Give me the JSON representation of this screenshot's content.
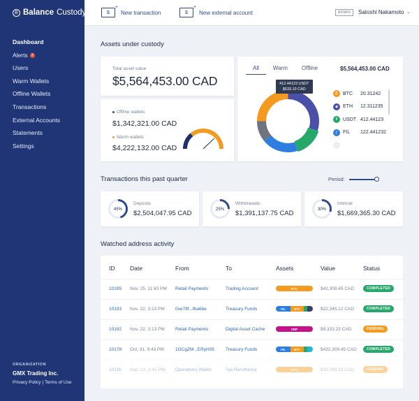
{
  "brand": {
    "bold": "Balance",
    "light": "Custody",
    "mark": "B"
  },
  "nav": [
    {
      "label": "Dashboard",
      "active": true
    },
    {
      "label": "Alerts",
      "badge": "3"
    },
    {
      "label": "Users"
    },
    {
      "label": "Warm Wallets"
    },
    {
      "label": "Offline Wallets"
    },
    {
      "label": "Transactions"
    },
    {
      "label": "External Accounts"
    },
    {
      "label": "Statements"
    },
    {
      "label": "Settings"
    }
  ],
  "org": {
    "label": "ORGANIZATION",
    "name": "GMX Trading Inc.",
    "privacy": "Privacy Policy",
    "sep": "|",
    "terms": "Terms of Use"
  },
  "topbar": {
    "new_transaction": "New transaction",
    "new_external": "New external account",
    "admin_tag": "ADMIN",
    "user": "Satoshi Nakamoto"
  },
  "assets": {
    "title": "Assets under custody",
    "total_label": "Total asset value",
    "total_value": "$5,564,453.00 CAD",
    "offline_label": "Offline wallets",
    "offline_value": "$1,342,321.00 CAD",
    "warm_label": "Warm wallets",
    "warm_value": "$4,222,132.00 CAD",
    "gauge_fraction": 0.76,
    "tabs": [
      "All",
      "Warm",
      "Offline"
    ],
    "active_tab": "All",
    "donut_total": "$5,564,453.00 CAD",
    "tooltip_line1": "412.44123 USDT",
    "tooltip_line2": "$533.10 CAD",
    "coins": [
      {
        "symbol": "BTC",
        "amount": "20.31242",
        "color": "#f39a1f",
        "icon": "bitcoin-icon",
        "glyph": "₿"
      },
      {
        "symbol": "ETH",
        "amount": "12.311235",
        "color": "#4a4fa8",
        "icon": "ethereum-icon",
        "glyph": "◆"
      },
      {
        "symbol": "USDT",
        "amount": "412.44123",
        "color": "#27a86b",
        "icon": "tether-icon",
        "glyph": "₮"
      },
      {
        "symbol": "FIL",
        "amount": "122.441232",
        "color": "#2e7de0",
        "icon": "filecoin-icon",
        "glyph": "ƒ"
      },
      {
        "symbol": "",
        "amount": "",
        "color": "#c9cfdb",
        "icon": "coin-icon",
        "glyph": ""
      }
    ],
    "donut_segments": [
      {
        "name": "ETH",
        "fraction": 0.3,
        "color": "#4a4fa8"
      },
      {
        "name": "USDT",
        "fraction": 0.15,
        "color": "#27a86b"
      },
      {
        "name": "FIL",
        "fraction": 0.19,
        "color": "#2e7de0"
      },
      {
        "name": "Other",
        "fraction": 0.11,
        "color": "#6f7480"
      },
      {
        "name": "BTC",
        "fraction": 0.25,
        "color": "#f39a1f"
      }
    ]
  },
  "quarter": {
    "title": "Transactions this past quarter",
    "period_label": "Period:",
    "cards": [
      {
        "label": "Deposits",
        "value": "$2,504,047.95 CAD",
        "percent": "45%",
        "fraction": 0.45
      },
      {
        "label": "Withdrawals",
        "value": "$1,391,137.75 CAD",
        "percent": "25%",
        "fraction": 0.25
      },
      {
        "label": "Internal",
        "value": "$1,669,365.30 CAD",
        "percent": "30%",
        "fraction": 0.3
      }
    ]
  },
  "activity": {
    "title": "Watched address activity",
    "columns": [
      "ID",
      "Date",
      "From",
      "To",
      "Assets",
      "Value",
      "Status"
    ],
    "rows": [
      {
        "id": "10195",
        "date": "Nov. 25, 11:43 PM",
        "from": "Retail Payments",
        "to": "Trading Account",
        "assets": [
          {
            "label": "BTC",
            "color": "#f39a1f",
            "share": 1
          }
        ],
        "value": "$42,309.45 CAD",
        "status": "COMPLETED",
        "status_color": "#27a86b",
        "faded": false
      },
      {
        "id": "10193",
        "date": "Nov. 22, 3:13 PM",
        "from": "0xe78f...fba6be",
        "to": "Treasury Funds",
        "assets": [
          {
            "label": "FIL",
            "color": "#2e7de0",
            "share": 0.4
          },
          {
            "label": "BTC",
            "color": "#f39a1f",
            "share": 0.35
          },
          {
            "label": "",
            "color": "#27a86b",
            "share": 0.1
          },
          {
            "label": "",
            "color": "#3b3f63",
            "share": 0.15
          }
        ],
        "value": "$22,345.12 CAD",
        "status": "COMPLETED",
        "status_color": "#27a86b",
        "faded": false
      },
      {
        "id": "10192",
        "date": "Nov. 22, 3:13 PM",
        "from": "Retail Payments",
        "to": "Digital Asset Cache",
        "assets": [
          {
            "label": "XRP",
            "color": "#c4138a",
            "share": 1
          }
        ],
        "value": "$9,333.23 CAD",
        "status": "PENDING",
        "status_color": "#f39a1f",
        "faded": false
      },
      {
        "id": "10178",
        "date": "Oct. 31, 9:43 PM",
        "from": "1GCgZM...ERyH35",
        "to": "Treasury Funds",
        "assets": [
          {
            "label": "FIL",
            "color": "#2e7de0",
            "share": 0.4
          },
          {
            "label": "BTC",
            "color": "#f39a1f",
            "share": 0.35
          },
          {
            "label": "",
            "color": "#27a86b",
            "share": 0.1
          },
          {
            "label": "",
            "color": "#22b8d6",
            "share": 0.15
          }
        ],
        "value": "$432,309.45 CAD",
        "status": "COMPLETED",
        "status_color": "#27a86b",
        "faded": false
      },
      {
        "id": "10116",
        "date": "Sep. 22, 2:41 PM",
        "from": "Operations Wallet",
        "to": "Tax Remittance",
        "assets": [
          {
            "label": "BTC",
            "color": "#f39a1f",
            "share": 1
          }
        ],
        "value": "$31,349.32 CAD",
        "status": "PENDING",
        "status_color": "#f39a1f",
        "faded": true
      }
    ]
  }
}
